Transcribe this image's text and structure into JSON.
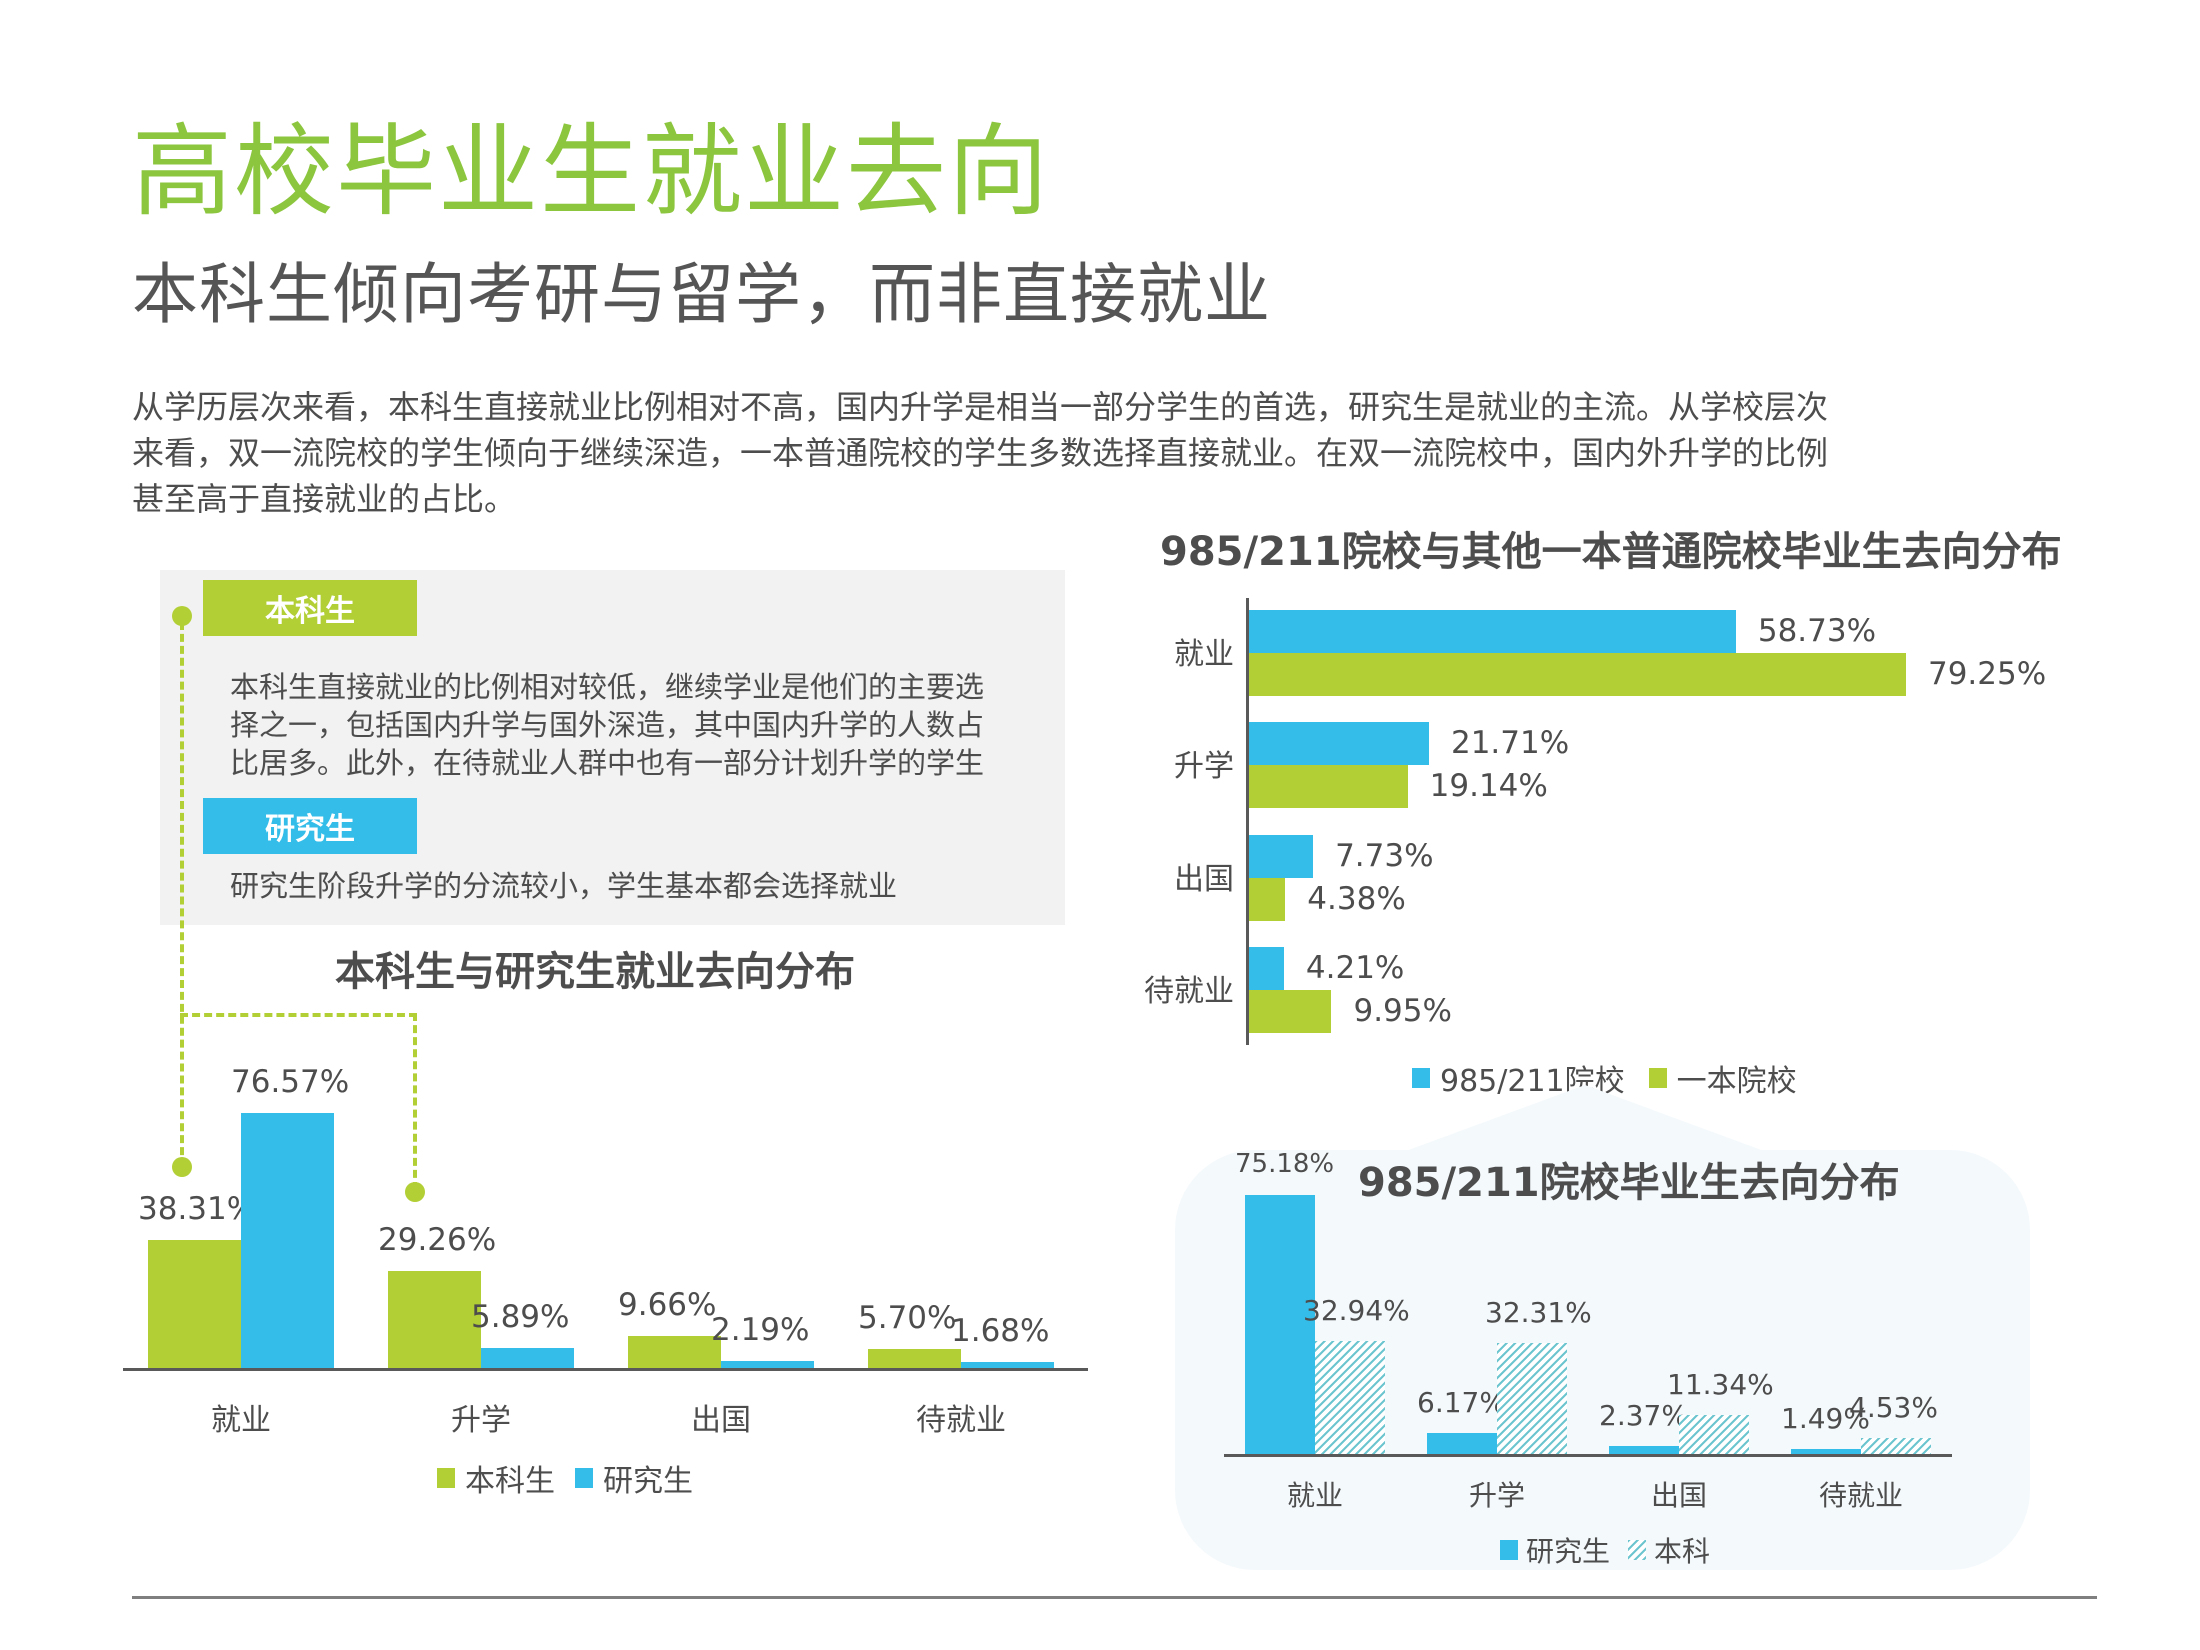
{
  "header": {
    "title": "高校毕业生就业去向",
    "subtitle": "本科生倾向考研与留学，而非直接就业"
  },
  "intro": {
    "lines": [
      "从学历层次来看，本科生直接就业比例相对不高，国内升学是相当一部分学生的首选，研究生是就业的主流。从学校层次",
      "来看，双一流院校的学生倾向于继续深造，一本普通院校的学生多数选择直接就业。在双一流院校中，国内外升学的比例",
      "甚至高于直接就业的占比。"
    ]
  },
  "info_panel": {
    "undergrad_tag": "本科生",
    "undergrad_text": [
      "本科生直接就业的比例相对较低，继续学业是他们的主要选",
      "择之一，包括国内升学与国外深造，其中国内升学的人数占",
      "比居多。此外，在待就业人群中也有一部分计划升学的学生"
    ],
    "grad_tag": "研究生",
    "grad_text": "研究生阶段升学的分流较小，学生基本都会选择就业"
  },
  "colors": {
    "accent_green": "#b2cf35",
    "accent_blue": "#33bde8",
    "title_green": "#8cc63f",
    "hatch": "#6cc5cf"
  },
  "chart_data": [
    {
      "id": "left",
      "type": "bar",
      "orientation": "vertical",
      "title": "本科生与研究生就业去向分布",
      "categories": [
        "就业",
        "升学",
        "出国",
        "待就业"
      ],
      "series": [
        {
          "name": "本科生",
          "color": "#b2cf35",
          "values": [
            38.31,
            29.26,
            9.66,
            5.7
          ],
          "labels": [
            "38.31%",
            "29.26%",
            "9.66%",
            "5.70%"
          ]
        },
        {
          "name": "研究生",
          "color": "#33bde8",
          "values": [
            76.57,
            5.89,
            2.19,
            1.68
          ],
          "labels": [
            "76.57%",
            "5.89%",
            "2.19%",
            "1.68%"
          ]
        }
      ],
      "ylim": [
        0,
        100
      ],
      "legend_position": "bottom",
      "grid": false
    },
    {
      "id": "right",
      "type": "bar",
      "orientation": "horizontal",
      "title": "985/211院校与其他一本普通院校毕业生去向分布",
      "categories": [
        "就业",
        "升学",
        "出国",
        "待就业"
      ],
      "series": [
        {
          "name": "985/211院校",
          "color": "#33bde8",
          "values": [
            58.73,
            21.71,
            7.73,
            4.21
          ],
          "labels": [
            "58.73%",
            "21.71%",
            "7.73%",
            "4.21%"
          ]
        },
        {
          "name": "一本院校",
          "color": "#b2cf35",
          "values": [
            79.25,
            19.14,
            4.38,
            9.95
          ],
          "labels": [
            "79.25%",
            "19.14%",
            "4.38%",
            "9.95%"
          ]
        }
      ],
      "xlim": [
        0,
        100
      ],
      "legend_position": "bottom",
      "grid": false
    },
    {
      "id": "inset",
      "type": "bar",
      "orientation": "vertical",
      "title": "985/211院校毕业生去向分布",
      "categories": [
        "就业",
        "升学",
        "出国",
        "待就业"
      ],
      "series": [
        {
          "name": "研究生",
          "color": "#33bde8",
          "pattern": "solid",
          "values": [
            75.18,
            6.17,
            2.37,
            1.49
          ],
          "labels": [
            "75.18%",
            "6.17%",
            "2.37%",
            "1.49%"
          ]
        },
        {
          "name": "本科",
          "color": "#6cc5cf",
          "pattern": "hatched",
          "values": [
            32.94,
            32.31,
            11.34,
            4.53
          ],
          "labels": [
            "32.94%",
            "32.31%",
            "11.34%",
            "4.53%"
          ]
        }
      ],
      "ylim": [
        0,
        100
      ],
      "legend_position": "bottom",
      "grid": false
    }
  ]
}
